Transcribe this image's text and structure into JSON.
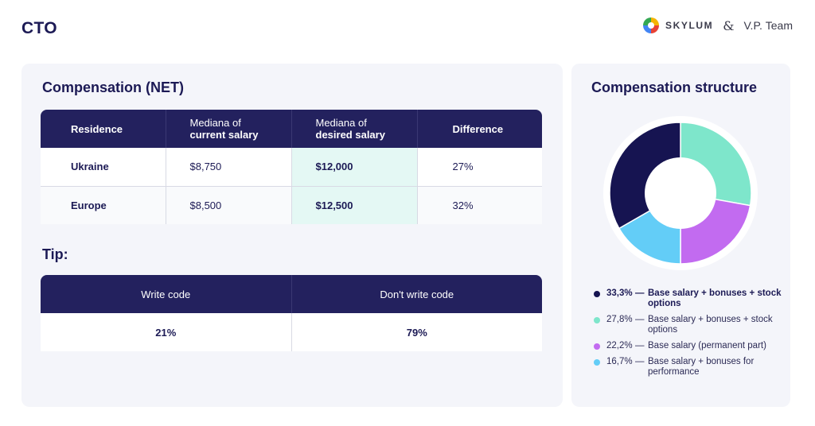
{
  "page": {
    "title": "CTO"
  },
  "logos": {
    "skylum": "SKYLUM",
    "amp": "&",
    "vp": "V.P.",
    "team": "Team"
  },
  "compensation": {
    "title": "Compensation (NET)",
    "headers": [
      {
        "line1": "Residence",
        "line2": ""
      },
      {
        "line1": "Mediana of",
        "line2": "current salary"
      },
      {
        "line1": "Mediana of",
        "line2": "desired salary"
      },
      {
        "line1": "Difference",
        "line2": ""
      }
    ],
    "rows": [
      {
        "residence": "Ukraine",
        "current": "$8,750",
        "desired": "$12,000",
        "difference": "27%"
      },
      {
        "residence": "Europe",
        "current": "$8,500",
        "desired": "$12,500",
        "difference": "32%"
      }
    ]
  },
  "tip": {
    "title": "Tip:",
    "headers": [
      "Write code",
      "Don't write code"
    ],
    "values": [
      "21%",
      "79%"
    ]
  },
  "chart_data": {
    "type": "pie",
    "title": "Compensation structure",
    "donut": true,
    "slices": [
      {
        "label": "Base salary + bonuses + stock options",
        "pct_label": "27,8%",
        "value": 27.8,
        "color": "#7ee6cb"
      },
      {
        "label": "Base salary (permanent part)",
        "pct_label": "22,2%",
        "value": 22.2,
        "color": "#c26bf0"
      },
      {
        "label": "Base salary + bonuses for performance",
        "pct_label": "16,7%",
        "value": 16.7,
        "color": "#63cdf7"
      },
      {
        "label": "Base salary + bonuses + stock options",
        "pct_label": "33,3%",
        "value": 33.3,
        "color": "#161451"
      }
    ],
    "legend": [
      {
        "pct": "33,3%",
        "dash": "—",
        "text": "Base salary + bonuses + stock options",
        "color": "#161451"
      },
      {
        "pct": "27,8%",
        "dash": "—",
        "text": "Base salary + bonuses + stock options",
        "color": "#7ee6cb"
      },
      {
        "pct": "22,2%",
        "dash": "—",
        "text": "Base salary (permanent part)",
        "color": "#c26bf0"
      },
      {
        "pct": "16,7%",
        "dash": "—",
        "text": "Base salary + bonuses for performance",
        "color": "#63cdf7"
      }
    ]
  }
}
